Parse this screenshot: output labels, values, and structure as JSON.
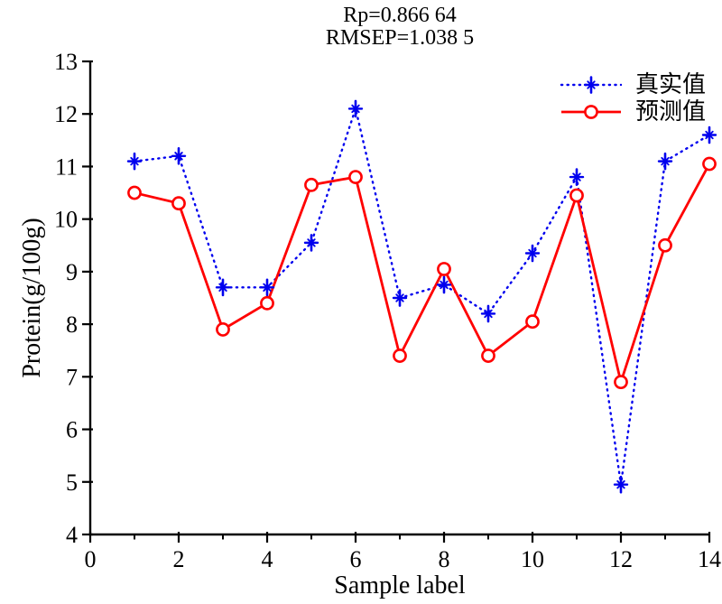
{
  "title": {
    "line1": "Rp=0.866 64",
    "line2": "RMSEP=1.038 5"
  },
  "chart_data": {
    "type": "line",
    "title": "Rp=0.866 64 / RMSEP=1.038 5",
    "xlabel": "Sample label",
    "ylabel": "Protein(g/100g)",
    "xlim": [
      0,
      14
    ],
    "ylim": [
      4,
      13
    ],
    "x_major_ticks": [
      0,
      2,
      4,
      6,
      8,
      10,
      12,
      14
    ],
    "x_minor_ticks": [
      1,
      3,
      5,
      7,
      9,
      11,
      13
    ],
    "y_ticks": [
      4,
      5,
      6,
      7,
      8,
      9,
      10,
      11,
      12,
      13
    ],
    "grid": false,
    "legend_position": "top-right-inside",
    "x": [
      1,
      2,
      3,
      4,
      5,
      6,
      7,
      8,
      9,
      10,
      11,
      12,
      13,
      14
    ],
    "series": [
      {
        "name": "真实值",
        "line_style": "dotted",
        "marker": "asterisk",
        "color": "#0000ee",
        "values": [
          11.1,
          11.2,
          8.7,
          8.7,
          9.55,
          12.1,
          8.5,
          8.75,
          8.2,
          9.35,
          10.8,
          4.95,
          11.1,
          11.6
        ]
      },
      {
        "name": "预测值",
        "line_style": "solid",
        "marker": "circle",
        "color": "#ff0000",
        "values": [
          10.5,
          10.3,
          7.9,
          8.4,
          10.65,
          10.8,
          7.4,
          9.05,
          7.4,
          8.05,
          10.45,
          6.9,
          9.5,
          11.05
        ]
      }
    ]
  },
  "colors": {
    "true_series": "#0000ee",
    "pred_series": "#ff0000",
    "axis": "#000000",
    "background": "#ffffff"
  }
}
